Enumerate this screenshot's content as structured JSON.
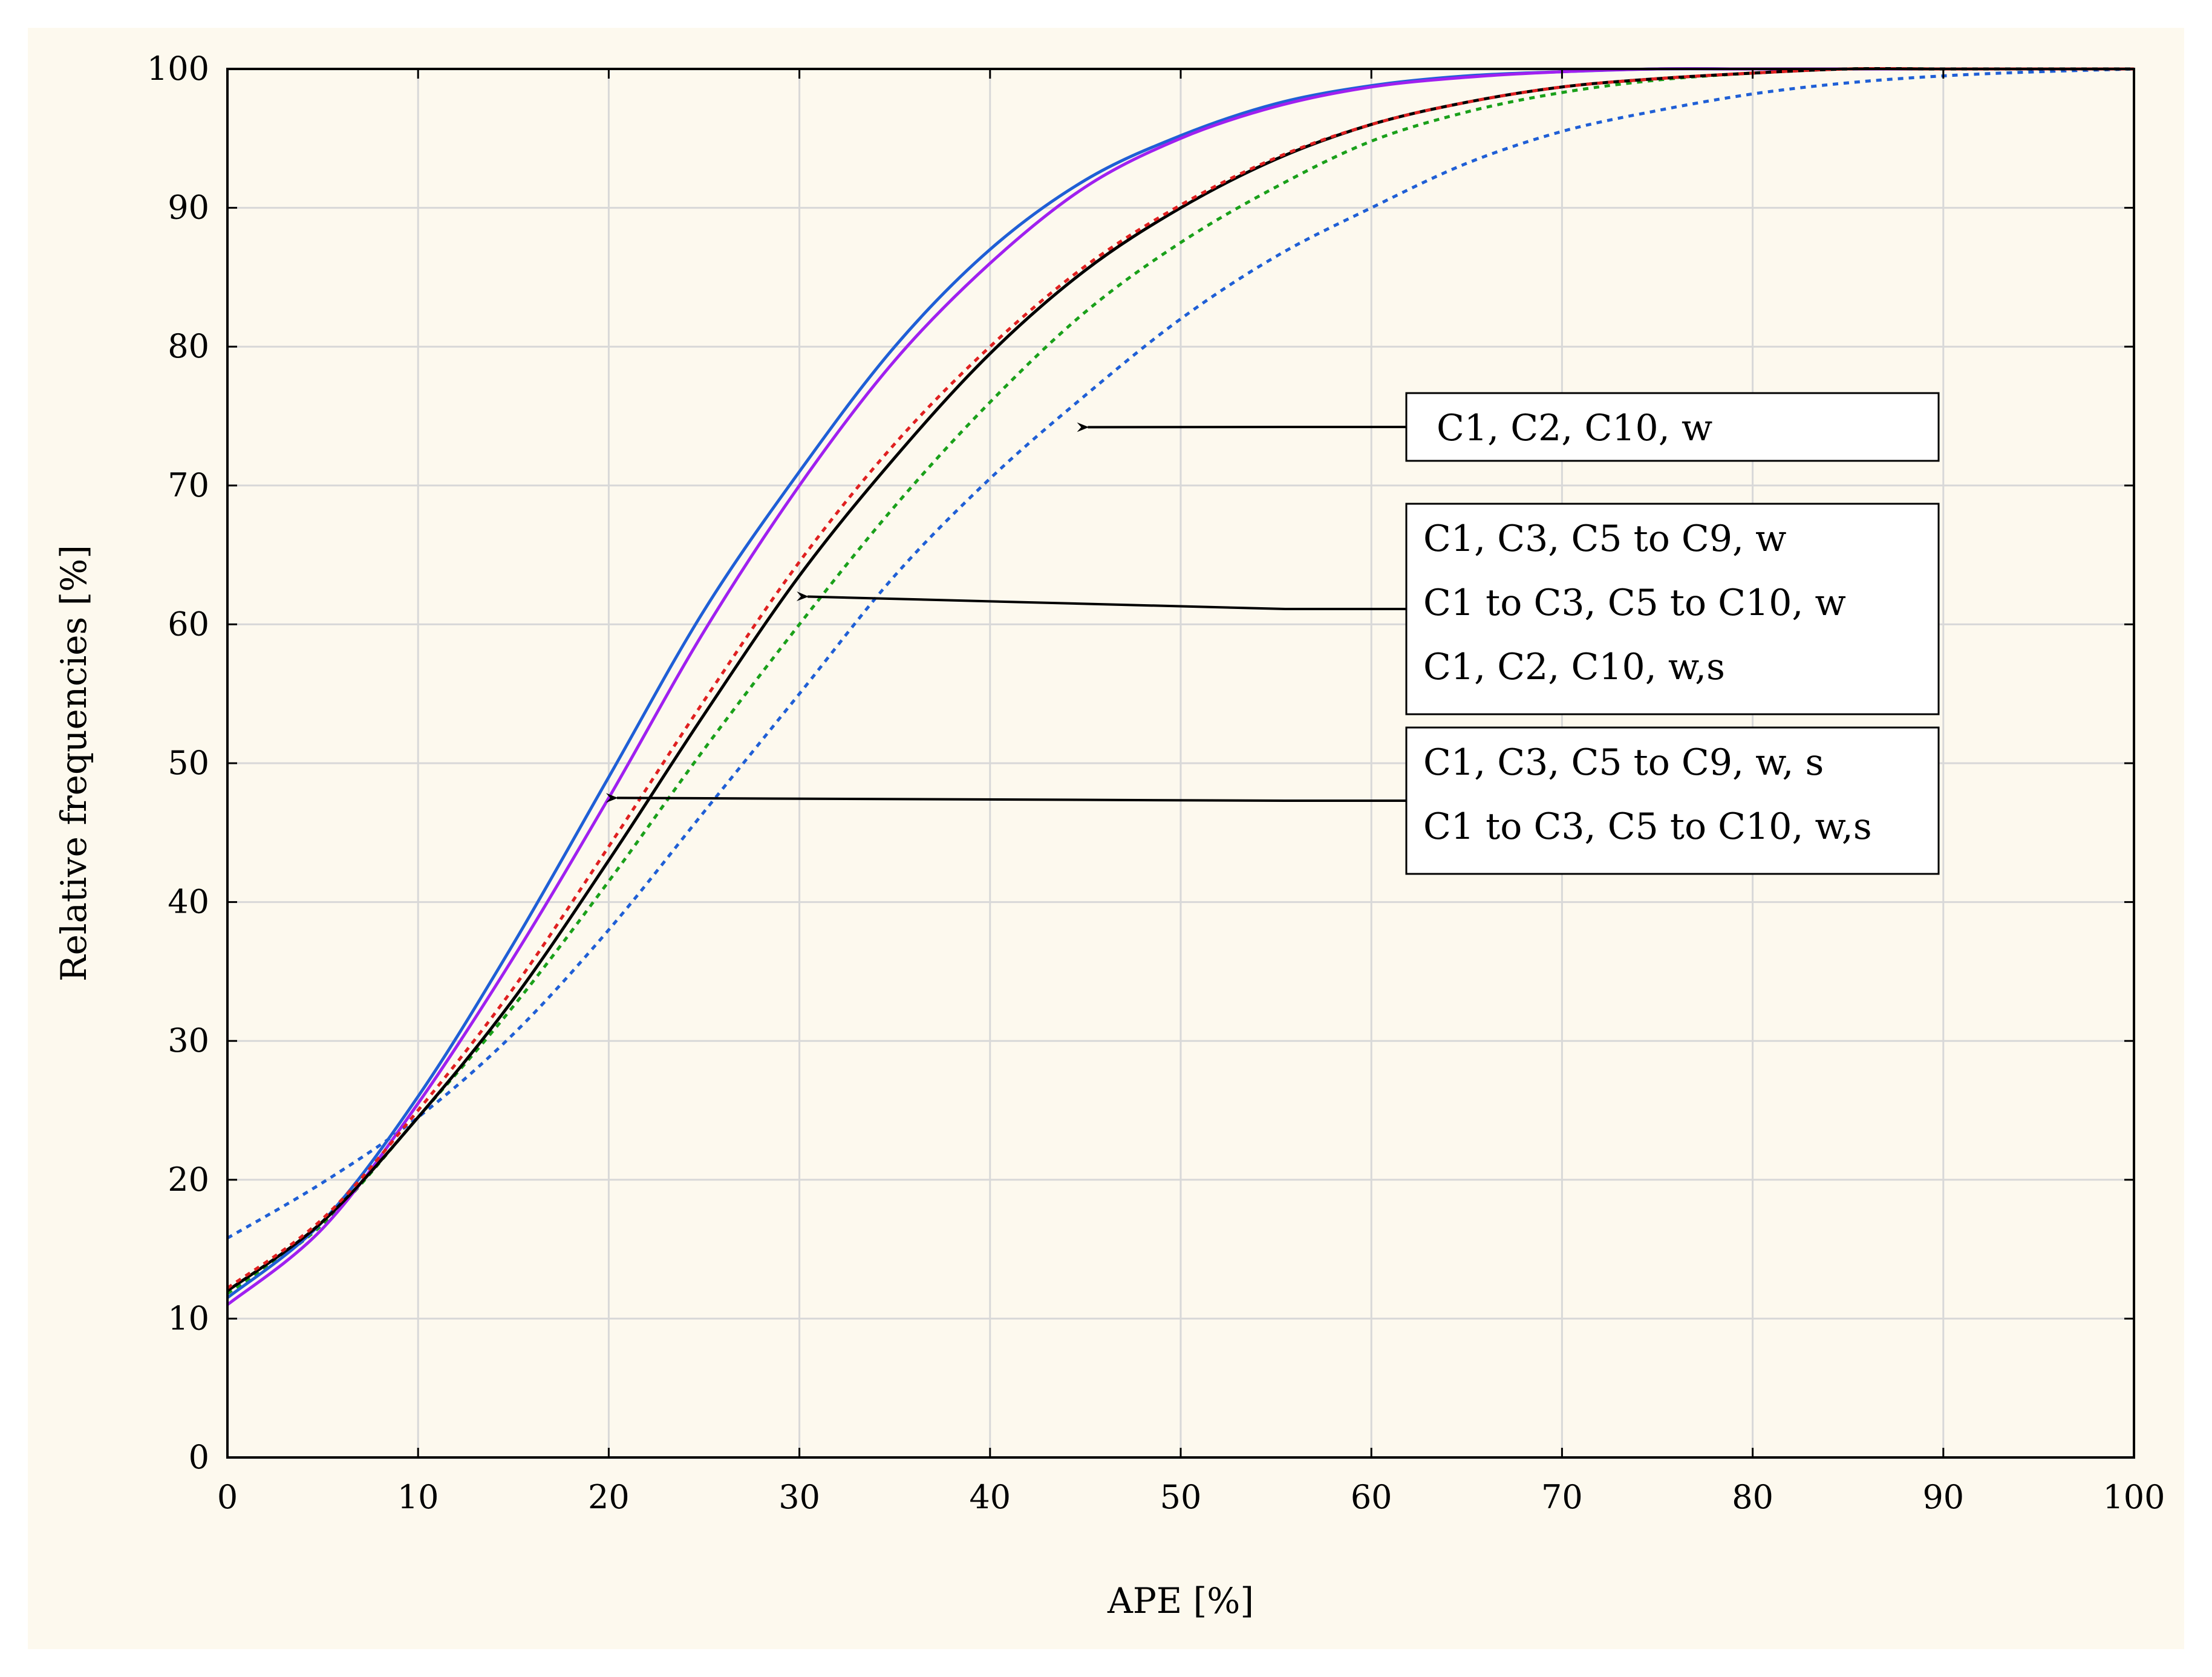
{
  "chart_data": {
    "type": "line",
    "xlabel": "APE [%]",
    "ylabel": "Relative frequencies [%]",
    "xlim": [
      0,
      100
    ],
    "ylim": [
      0,
      100
    ],
    "x_ticks": [
      "0",
      "10",
      "20",
      "30",
      "40",
      "50",
      "60",
      "70",
      "80",
      "90",
      "100"
    ],
    "y_ticks": [
      "0",
      "10",
      "20",
      "30",
      "40",
      "50",
      "60",
      "70",
      "80",
      "90",
      "100"
    ],
    "grid": true,
    "x": [
      0,
      5,
      10,
      15,
      20,
      25,
      30,
      35,
      40,
      45,
      50,
      55,
      60,
      65,
      70,
      75,
      80,
      85,
      90,
      95,
      100
    ],
    "series": [
      {
        "color": "#1f5fd6",
        "dashed": false,
        "values": [
          11.5,
          17,
          26,
          37,
          49,
          61,
          71,
          80,
          87,
          92,
          95.2,
          97.5,
          98.8,
          99.5,
          99.8,
          100,
          100,
          100,
          100,
          100,
          100
        ]
      },
      {
        "color": "#a020f0",
        "dashed": false,
        "values": [
          11,
          16.5,
          25.5,
          36,
          47.5,
          59.5,
          70,
          79,
          86,
          91.5,
          95,
          97.3,
          98.7,
          99.4,
          99.8,
          100,
          100,
          100,
          100,
          100,
          100
        ]
      },
      {
        "color": "#000000",
        "dashed": false,
        "values": [
          12,
          17,
          24.5,
          33,
          43,
          53.5,
          63.5,
          72,
          79.5,
          85.5,
          90,
          93.5,
          96,
          97.6,
          98.7,
          99.3,
          99.7,
          100,
          100,
          100,
          100
        ]
      },
      {
        "color": "#e02020",
        "dashed": true,
        "values": [
          12.2,
          17.2,
          25,
          33.8,
          44,
          54.5,
          64.5,
          73,
          80,
          85.8,
          90.2,
          93.6,
          96,
          97.6,
          98.7,
          99.3,
          99.7,
          100,
          100,
          100,
          100
        ]
      },
      {
        "color": "#1aa01a",
        "dashed": true,
        "values": [
          11.8,
          16.8,
          24.5,
          32.5,
          41.5,
          51,
          60,
          68.5,
          76,
          82.5,
          87.5,
          91.5,
          94.8,
          96.9,
          98.3,
          99.2,
          99.7,
          100,
          100,
          100,
          100
        ]
      },
      {
        "color": "#1f5fd6",
        "dashed": true,
        "values": [
          15.8,
          19.8,
          24.5,
          30.5,
          38,
          46.5,
          55,
          63.5,
          70.5,
          76.5,
          82,
          86.5,
          90,
          93.2,
          95.5,
          97,
          98.2,
          99,
          99.5,
          99.8,
          100
        ]
      }
    ],
    "annotations": [
      {
        "lines": [
          "C1, C2, C10, w"
        ],
        "arrow_to": [
          45,
          74.2
        ]
      },
      {
        "lines": [
          "C1, C3, C5 to C9, w",
          "C1 to C3, C5 to C10, w",
          "C1, C2, C10, w,s"
        ],
        "arrow_to": [
          30.3,
          62
        ]
      },
      {
        "lines": [
          "C1, C3, C5 to C9, w, s",
          "C1 to C3, C5 to C10, w,s"
        ],
        "arrow_to": [
          20.3,
          47.5
        ]
      }
    ]
  }
}
